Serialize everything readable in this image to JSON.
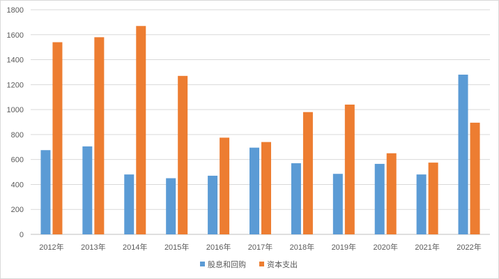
{
  "chart_data": {
    "type": "bar",
    "categories": [
      "2012年",
      "2013年",
      "2014年",
      "2015年",
      "2016年",
      "2017年",
      "2018年",
      "2019年",
      "2020年",
      "2021年",
      "2022年"
    ],
    "series": [
      {
        "name": "股息和回购",
        "color": "#5B9BD5",
        "values": [
          675,
          705,
          480,
          450,
          470,
          695,
          570,
          485,
          565,
          480,
          1280
        ]
      },
      {
        "name": "资本支出",
        "color": "#ED7D31",
        "values": [
          1540,
          1580,
          1670,
          1270,
          775,
          740,
          980,
          1040,
          650,
          575,
          895
        ]
      }
    ],
    "y_ticks": [
      "0",
      "200",
      "400",
      "600",
      "800",
      "1000",
      "1200",
      "1400",
      "1600",
      "1800"
    ],
    "ylim": [
      0,
      1800
    ],
    "grid": true,
    "legend_position": "bottom"
  }
}
